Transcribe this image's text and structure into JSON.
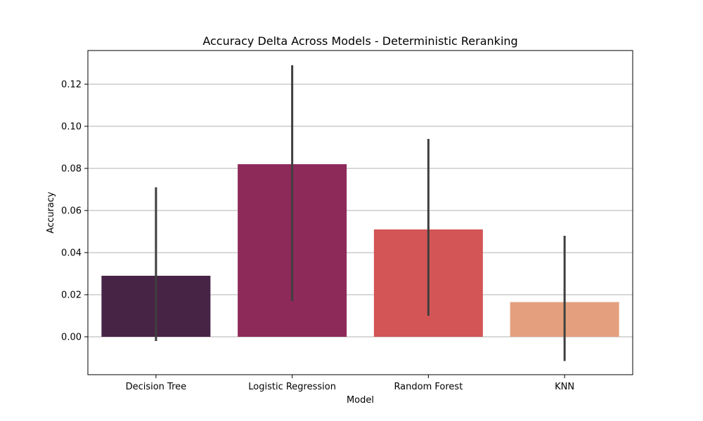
{
  "chart_data": {
    "type": "bar",
    "title": "Accuracy Delta Across Models - Deterministic Reranking",
    "xlabel": "Model",
    "ylabel": "Accuracy",
    "categories": [
      "Decision Tree",
      "Logistic Regression",
      "Random Forest",
      "KNN"
    ],
    "values": [
      0.029,
      0.082,
      0.051,
      0.0165
    ],
    "error_low": [
      -0.002,
      0.017,
      0.01,
      -0.0115
    ],
    "error_high": [
      0.071,
      0.129,
      0.094,
      0.048
    ],
    "colors": [
      "#472445",
      "#8e2a5a",
      "#d35556",
      "#e4a07e"
    ],
    "ylim": [
      -0.018,
      0.136
    ],
    "yticks": [
      0.0,
      0.02,
      0.04,
      0.06,
      0.08,
      0.1,
      0.12
    ],
    "ytick_labels": [
      "0.00",
      "0.02",
      "0.04",
      "0.06",
      "0.08",
      "0.10",
      "0.12"
    ],
    "grid": "y",
    "legend": "none"
  }
}
